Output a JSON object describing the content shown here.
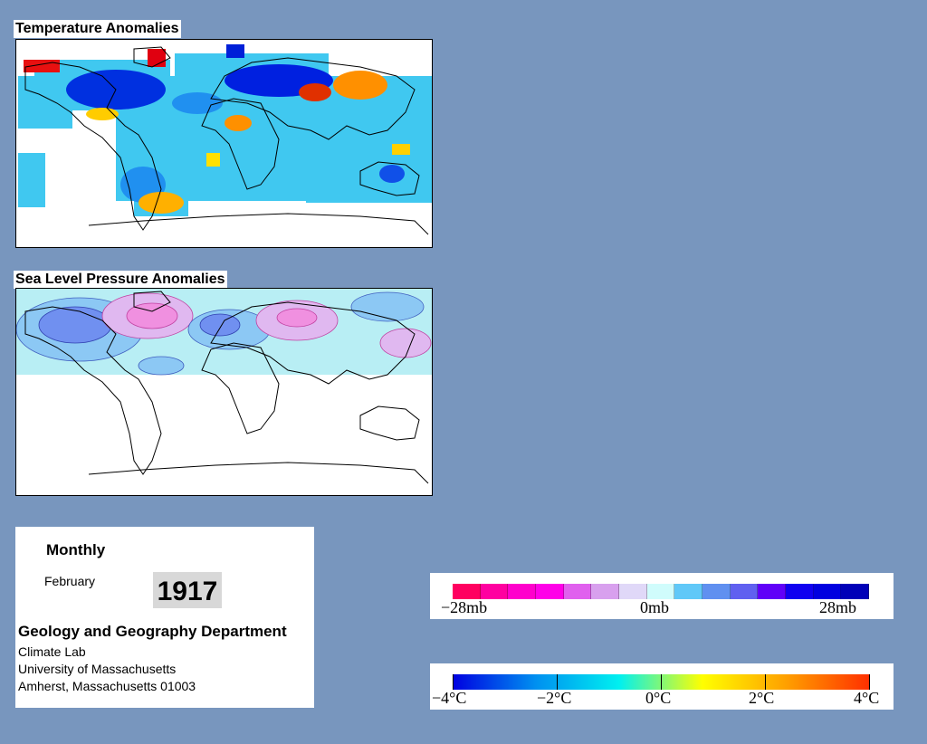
{
  "temperature_panel": {
    "title": "Temperature Anomalies"
  },
  "pressure_panel": {
    "title": "Sea Level Pressure Anomalies"
  },
  "info": {
    "period": "Monthly",
    "month": "February",
    "year": "1917",
    "department": "Geology and Geography Department",
    "line1": "Climate Lab",
    "line2": "University of Massachusetts",
    "line3": "Amherst, Massachusetts 01003"
  },
  "pressure_legend": {
    "labels": [
      "−28mb",
      "0mb",
      "28mb"
    ],
    "colors": [
      "#ff0060",
      "#ff00a0",
      "#ff00cc",
      "#ff00e8",
      "#e060ee",
      "#d8a0ee",
      "#e0d8f8",
      "#d0fcfc",
      "#60c8f8",
      "#6090f0",
      "#6060f0",
      "#6000f8",
      "#1000f0",
      "#0000e0",
      "#0000b8"
    ]
  },
  "temperature_legend": {
    "labels": [
      "−4°C",
      "−2°C",
      "0°C",
      "2°C",
      "4°C"
    ],
    "gradient": [
      "#0000e0",
      "#0090f0",
      "#00f0f0",
      "#ffff00",
      "#ffa000",
      "#ff3000"
    ]
  },
  "colors": {
    "background": "#7896BE",
    "ocean_missing": "#ffffff",
    "warm": "#ff8800",
    "cold": "#0020e0"
  }
}
